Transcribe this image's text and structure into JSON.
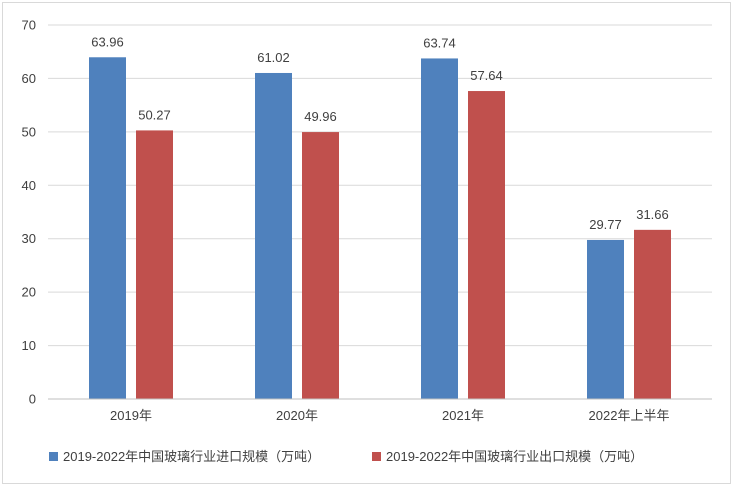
{
  "chart_data": {
    "type": "bar",
    "categories": [
      "2019年",
      "2020年",
      "2021年",
      "2022年上半年"
    ],
    "series": [
      {
        "name": "2019-2022年中国玻璃行业进口规模（万吨）",
        "values": [
          63.96,
          61.02,
          63.74,
          29.77
        ],
        "labels": [
          "63.96",
          "61.02",
          "63.74",
          "29.77"
        ],
        "color": "#4f81bd"
      },
      {
        "name": "2019-2022年中国玻璃行业出口规模（万吨）",
        "values": [
          50.27,
          49.96,
          57.64,
          31.66
        ],
        "labels": [
          "50.27",
          "49.96",
          "57.64",
          "31.66"
        ],
        "color": "#c0504d"
      }
    ],
    "y_ticks": [
      "0",
      "10",
      "20",
      "30",
      "40",
      "50",
      "60",
      "70"
    ],
    "ylim": [
      0,
      70
    ],
    "grid": true,
    "legend_position": "bottom",
    "title": "",
    "xlabel": "",
    "ylabel": ""
  }
}
